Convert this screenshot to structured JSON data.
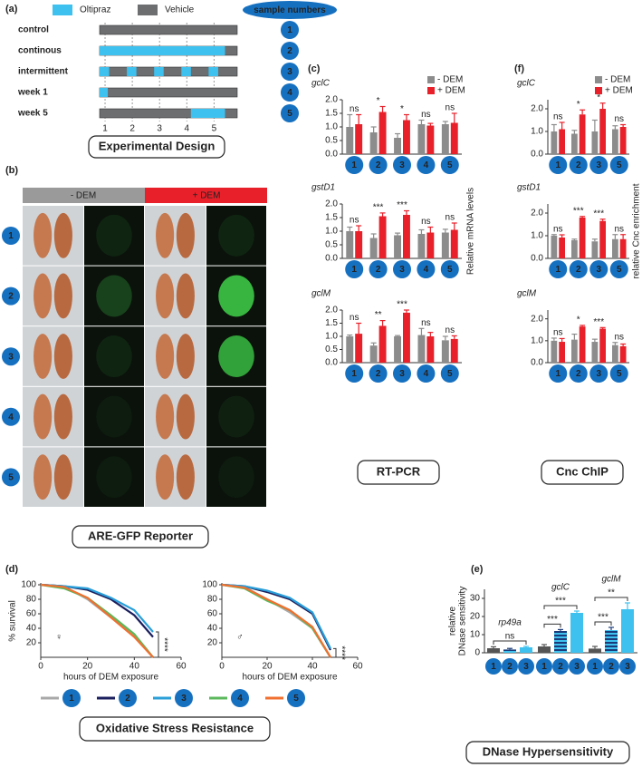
{
  "labels": {
    "a": "(a)",
    "b": "(b)",
    "c": "(c)",
    "d": "(d)",
    "e": "(e)",
    "f": "(f)"
  },
  "captions": {
    "design": "Experimental Design",
    "reporter": "ARE-GFP Reporter",
    "rtpcr": "RT-PCR",
    "chip": "Cnc ChIP",
    "stress": "Oxidative Stress Resistance",
    "dnase": "DNase Hypersensitivity"
  },
  "design": {
    "legend": [
      {
        "name": "Oltipraz",
        "color": "#3ec1ee"
      },
      {
        "name": "Vehicle",
        "color": "#6d6e70"
      }
    ],
    "badge": "sample numbers",
    "xlim": [
      0.8,
      5.85
    ],
    "xticks": [
      1,
      2,
      3,
      4,
      5
    ],
    "rows": [
      {
        "label": "control",
        "sample": "1"
      },
      {
        "label": "continous",
        "sample": "2",
        "oltipraz": [
          [
            0.8,
            5.4
          ]
        ]
      },
      {
        "label": "intermittent",
        "sample": "3",
        "oltipraz": [
          [
            0.8,
            1.15
          ],
          [
            1.8,
            2.15
          ],
          [
            2.8,
            3.15
          ],
          [
            3.8,
            4.15
          ],
          [
            4.8,
            5.15
          ]
        ]
      },
      {
        "label": "week 1",
        "sample": "4",
        "oltipraz": [
          [
            0.8,
            1.1
          ]
        ]
      },
      {
        "label": "week 5",
        "sample": "5",
        "oltipraz": [
          [
            4.15,
            5.4
          ]
        ]
      }
    ]
  },
  "reporter": {
    "headers": [
      "- DEM",
      "+ DEM"
    ],
    "rows": [
      "1",
      "2",
      "3",
      "4",
      "5"
    ]
  },
  "chart_data": [
    {
      "type": "bar",
      "title": "gclC",
      "categories": [
        "1",
        "2",
        "3",
        "4",
        "5"
      ],
      "ylim": [
        0,
        2.0
      ],
      "yticks": [
        {
          "value": 0,
          "label": "0.0"
        },
        0.5,
        {
          "value": 1,
          "label": "1.0"
        },
        1.5,
        {
          "value": 2,
          "label": "2.0"
        }
      ],
      "series": [
        {
          "name": "- DEM",
          "color": "#8c8c8c",
          "values": [
            1.0,
            0.8,
            0.6,
            1.1,
            1.1
          ],
          "errors": [
            0.45,
            0.2,
            0.15,
            0.15,
            0.1
          ]
        },
        {
          "name": "+ DEM",
          "color": "#e8202a",
          "values": [
            1.1,
            1.55,
            1.25,
            1.05,
            1.15
          ],
          "errors": [
            0.35,
            0.2,
            0.2,
            0.08,
            0.35
          ]
        }
      ],
      "significance": [
        "ns",
        "*",
        "*",
        "ns",
        "ns"
      ]
    },
    {
      "type": "bar",
      "title": "gstD1",
      "categories": [
        "1",
        "2",
        "3",
        "4",
        "5"
      ],
      "ylim": [
        0,
        2.0
      ],
      "ylabel": "Relative mRNA levels",
      "yticks": [
        {
          "value": 0,
          "label": "0.0"
        },
        0.5,
        {
          "value": 1,
          "label": "1.0"
        },
        1.5,
        {
          "value": 2,
          "label": "2.0"
        }
      ],
      "series": [
        {
          "color": "#8c8c8c",
          "values": [
            1.0,
            0.75,
            0.85,
            0.9,
            0.95
          ],
          "errors": [
            0.15,
            0.15,
            0.08,
            0.15,
            0.12
          ]
        },
        {
          "color": "#e8202a",
          "values": [
            1.0,
            1.55,
            1.6,
            0.95,
            1.05
          ],
          "errors": [
            0.2,
            0.12,
            0.15,
            0.2,
            0.25
          ]
        }
      ],
      "significance": [
        "ns",
        "***",
        "***",
        "ns",
        "ns"
      ]
    },
    {
      "type": "bar",
      "title": "gclM",
      "categories": [
        "1",
        "2",
        "3",
        "4",
        "5"
      ],
      "ylim": [
        0,
        2.0
      ],
      "yticks": [
        {
          "value": 0,
          "label": "0.0"
        },
        0.5,
        {
          "value": 1,
          "label": "1.0"
        },
        1.5,
        {
          "value": 2,
          "label": "2.0"
        }
      ],
      "series": [
        {
          "color": "#8c8c8c",
          "values": [
            1.0,
            0.65,
            1.0,
            1.05,
            0.85
          ],
          "errors": [
            0.05,
            0.1,
            0.03,
            0.25,
            0.15
          ]
        },
        {
          "color": "#e8202a",
          "values": [
            1.1,
            1.4,
            1.9,
            1.0,
            0.9
          ],
          "errors": [
            0.4,
            0.2,
            0.1,
            0.15,
            0.12
          ]
        }
      ],
      "significance": [
        "ns",
        "**",
        "***",
        "ns",
        "ns"
      ]
    },
    {
      "type": "bar",
      "title": "gclC",
      "categories": [
        "1",
        "2",
        "3",
        "5"
      ],
      "ylim": [
        0,
        2.4
      ],
      "yticks": [
        {
          "value": 0,
          "label": "0.0"
        },
        {
          "value": 1,
          "label": "1.0"
        },
        {
          "value": 2,
          "label": "2.0"
        }
      ],
      "series": [
        {
          "name": "- DEM",
          "color": "#8c8c8c",
          "values": [
            1.0,
            0.9,
            1.0,
            1.1
          ],
          "errors": [
            0.3,
            0.15,
            0.5,
            0.15
          ]
        },
        {
          "name": "+ DEM",
          "color": "#e8202a",
          "values": [
            1.1,
            1.75,
            2.0,
            1.2
          ],
          "errors": [
            0.3,
            0.2,
            0.25,
            0.1
          ]
        }
      ],
      "significance": [
        "ns",
        "*",
        "*",
        "ns"
      ]
    },
    {
      "type": "bar",
      "title": "gstD1",
      "categories": [
        "1",
        "2",
        "3",
        "5"
      ],
      "ylim": [
        0,
        2.4
      ],
      "ylabel": "relative Cnc enrichment",
      "yticks": [
        {
          "value": 0,
          "label": "0.0"
        },
        {
          "value": 1,
          "label": "1.0"
        },
        {
          "value": 2,
          "label": "2.0"
        }
      ],
      "series": [
        {
          "color": "#8c8c8c",
          "values": [
            1.0,
            0.8,
            0.75,
            0.85
          ],
          "errors": [
            0.05,
            0.05,
            0.1,
            0.2
          ]
        },
        {
          "color": "#e8202a",
          "values": [
            0.92,
            1.8,
            1.65,
            0.85
          ],
          "errors": [
            0.12,
            0.05,
            0.08,
            0.2
          ]
        }
      ],
      "significance": [
        "ns",
        "***",
        "***",
        "ns"
      ]
    },
    {
      "type": "bar",
      "title": "gclM",
      "categories": [
        "1",
        "2",
        "3",
        "5"
      ],
      "ylim": [
        0,
        2.4
      ],
      "yticks": [
        {
          "value": 0,
          "label": "0.0"
        },
        {
          "value": 1,
          "label": "1.0"
        },
        {
          "value": 2,
          "label": "2.0"
        }
      ],
      "series": [
        {
          "color": "#8c8c8c",
          "values": [
            1.0,
            1.05,
            0.95,
            0.8
          ],
          "errors": [
            0.12,
            0.25,
            0.12,
            0.12
          ]
        },
        {
          "color": "#e8202a",
          "values": [
            0.95,
            1.65,
            1.55,
            0.75
          ],
          "errors": [
            0.15,
            0.05,
            0.05,
            0.1
          ]
        }
      ],
      "significance": [
        "ns",
        "*",
        "***",
        "ns"
      ]
    },
    {
      "type": "line",
      "symbol": "♀",
      "ylabel": "% survival",
      "xlabel": "hours of DEM exposure",
      "annotation": "****",
      "x": [
        0,
        10,
        20,
        30,
        40,
        48
      ],
      "xlim": [
        0,
        60
      ],
      "xticks": [
        0,
        20,
        40,
        60
      ],
      "ylim": [
        0,
        100
      ],
      "yticks": [
        20,
        40,
        60,
        80,
        100
      ],
      "series": [
        {
          "name": "1",
          "color": "#a8a8a8",
          "values": [
            100,
            98,
            80,
            55,
            30,
            0
          ]
        },
        {
          "name": "2",
          "color": "#1b1f5e",
          "values": [
            100,
            98,
            93,
            80,
            58,
            28
          ]
        },
        {
          "name": "3",
          "color": "#2a9fd8",
          "values": [
            100,
            98,
            95,
            82,
            65,
            35
          ]
        },
        {
          "name": "4",
          "color": "#5cb85c",
          "values": [
            100,
            95,
            82,
            58,
            32,
            0
          ]
        },
        {
          "name": "5",
          "color": "#f07030",
          "values": [
            100,
            97,
            82,
            55,
            28,
            0
          ]
        }
      ]
    },
    {
      "type": "line",
      "symbol": "♂",
      "xlabel": "hours of DEM exposure",
      "annotation": "****",
      "x": [
        0,
        10,
        20,
        30,
        40,
        48
      ],
      "xlim": [
        0,
        60
      ],
      "xticks": [
        0,
        20,
        40,
        60
      ],
      "ylim": [
        0,
        100
      ],
      "yticks": [
        20,
        40,
        60,
        80,
        100
      ],
      "series": [
        {
          "color": "#a8a8a8",
          "values": [
            100,
            97,
            80,
            62,
            40,
            0
          ]
        },
        {
          "color": "#1b1f5e",
          "values": [
            100,
            98,
            90,
            80,
            60,
            10
          ]
        },
        {
          "color": "#2a9fd8",
          "values": [
            100,
            98,
            92,
            82,
            62,
            12
          ]
        },
        {
          "color": "#5cb85c",
          "values": [
            100,
            95,
            78,
            65,
            40,
            0
          ]
        },
        {
          "color": "#f07030",
          "values": [
            100,
            96,
            80,
            65,
            42,
            0
          ]
        }
      ]
    },
    {
      "type": "groupbar",
      "ylabel": [
        "relative",
        "DNase sensitivity"
      ],
      "groups": [
        "rp49a",
        "gclC",
        "gclM"
      ],
      "categories": [
        "1",
        "2",
        "3",
        "1",
        "2",
        "3",
        "1",
        "2",
        "3"
      ],
      "values": [
        2.5,
        1.8,
        3.0,
        3.5,
        12,
        22,
        2.3,
        12.5,
        24
      ],
      "errors": [
        0.8,
        0.6,
        0.5,
        1,
        0.8,
        1,
        1.2,
        1.5,
        3.5
      ],
      "colors": [
        "#555555",
        "#1b3c7a",
        "#3ec1ee",
        "#555555",
        "#1b3c7a",
        "#3ec1ee",
        "#555555",
        "#1b3c7a",
        "#3ec1ee"
      ],
      "stripe_color": "#3ec1ee",
      "striped": [
        false,
        true,
        false,
        false,
        true,
        false,
        false,
        true,
        false
      ],
      "ylim": [
        0,
        35
      ],
      "yticks": [
        0,
        10,
        20,
        30
      ],
      "brackets": [
        {
          "text": "ns",
          "from": 0,
          "to": 2
        },
        {
          "text": "***",
          "from": 3,
          "to": 4
        },
        {
          "text": "***",
          "from": 3,
          "to": 5
        },
        {
          "text": "***",
          "from": 6,
          "to": 7
        },
        {
          "text": "**",
          "from": 6,
          "to": 8
        }
      ]
    }
  ]
}
